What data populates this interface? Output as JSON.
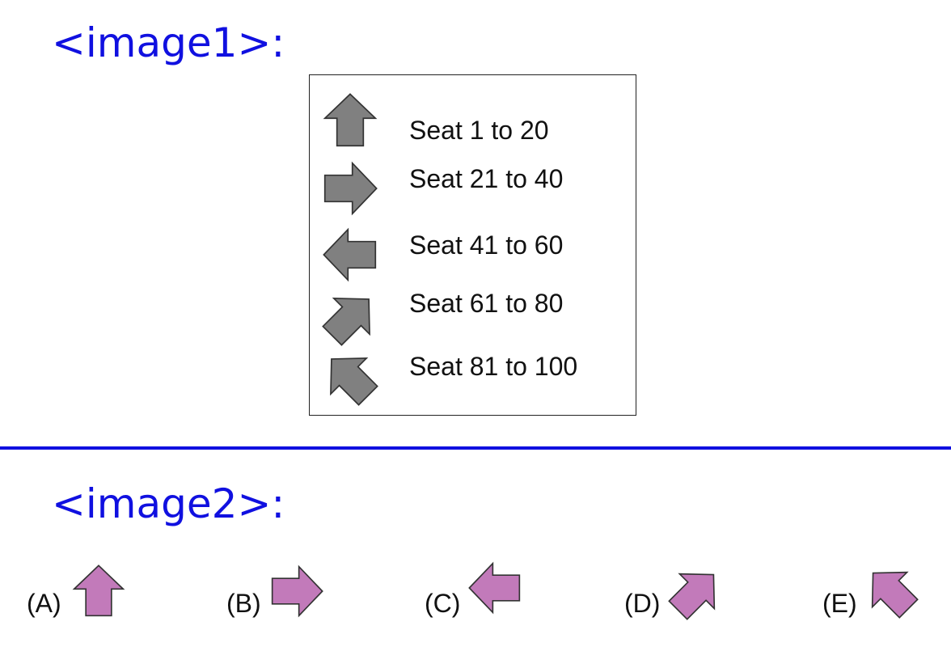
{
  "headings": {
    "image1": "<image1>:",
    "image2": "<image2>:"
  },
  "colors": {
    "heading": "#1010e0",
    "legend_arrow": "#808080",
    "option_arrow": "#c27aba",
    "outline": "#333333"
  },
  "legend": [
    {
      "icon": "arrow-up-icon",
      "label": "Seat 1 to 20"
    },
    {
      "icon": "arrow-right-icon",
      "label": "Seat 21 to 40"
    },
    {
      "icon": "arrow-left-icon",
      "label": "Seat 41 to 60"
    },
    {
      "icon": "arrow-up-right-icon",
      "label": "Seat 61 to 80"
    },
    {
      "icon": "arrow-up-left-icon",
      "label": "Seat 81 to 100"
    }
  ],
  "options": [
    {
      "label": "(A)",
      "icon": "arrow-up-icon"
    },
    {
      "label": "(B)",
      "icon": "arrow-right-icon"
    },
    {
      "label": "(C)",
      "icon": "arrow-left-icon"
    },
    {
      "label": "(D)",
      "icon": "arrow-up-right-icon"
    },
    {
      "label": "(E)",
      "icon": "arrow-up-left-icon"
    }
  ]
}
